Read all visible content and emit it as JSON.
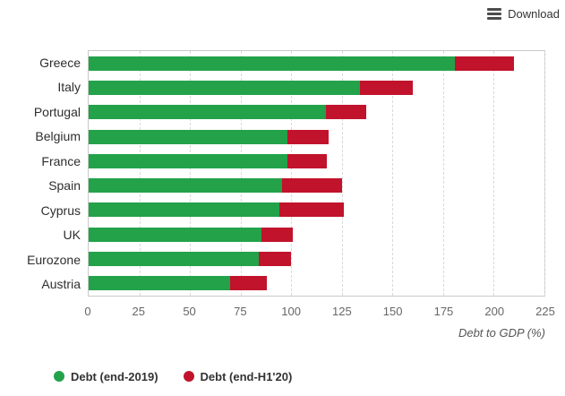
{
  "toolbar": {
    "download_label": "Download"
  },
  "chart_data": {
    "type": "bar",
    "orientation": "horizontal",
    "stacked": true,
    "representation": "red segment drawn from end-2019 level up to end-H1'20 level",
    "title": "",
    "xlabel": "Debt to GDP (%)",
    "ylabel": "",
    "categories": [
      "Greece",
      "Italy",
      "Portugal",
      "Belgium",
      "France",
      "Spain",
      "Cyprus",
      "UK",
      "Eurozone",
      "Austria"
    ],
    "series": [
      {
        "name": "Debt (end-2019)",
        "color": "#23a24a",
        "values": [
          181,
          134,
          117,
          98,
          98,
          95.5,
          94,
          85.5,
          84,
          70
        ]
      },
      {
        "name": "Debt (end-H1'20)",
        "color": "#c1132b",
        "values": [
          210,
          160,
          137,
          118.5,
          117.5,
          125,
          126,
          101,
          100,
          88
        ]
      }
    ],
    "xticks": [
      0,
      25,
      50,
      75,
      100,
      125,
      150,
      175,
      200,
      225
    ],
    "xlim": [
      0,
      225
    ],
    "grid": "vertical-dashed",
    "legend_position": "bottom-left"
  }
}
